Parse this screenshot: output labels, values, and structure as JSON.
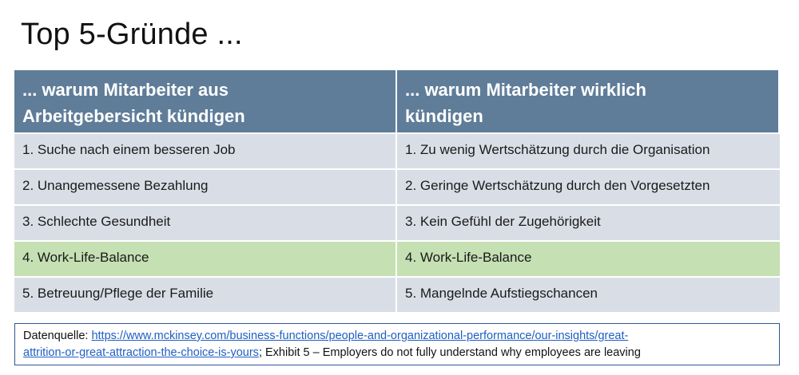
{
  "title": "Top 5-Gründe ...",
  "table": {
    "headers": [
      [
        "... warum Mitarbeiter aus",
        "Arbeitgebersicht kündigen"
      ],
      [
        "... warum Mitarbeiter wirklich",
        "kündigen"
      ]
    ],
    "rows": [
      {
        "left": "1. Suche nach einem besseren Job",
        "right": "1. Zu wenig Wertschätzung durch die Organisation",
        "highlight": false
      },
      {
        "left": "2. Unangemessene Bezahlung",
        "right": "2. Geringe Wertschätzung durch den Vorgesetzten",
        "highlight": false
      },
      {
        "left": "3. Schlechte Gesundheit",
        "right": "3. Kein Gefühl der Zugehörigkeit",
        "highlight": false
      },
      {
        "left": "4. Work-Life-Balance",
        "right": "4. Work-Life-Balance",
        "highlight": true
      },
      {
        "left": "5. Betreuung/Pflege der Familie",
        "right": "5. Mangelnde Aufstiegschancen",
        "highlight": false
      }
    ],
    "highlight_color": "#c5e0b3",
    "header_color": "#5f7d99"
  },
  "source": {
    "label": "Datenquelle: ",
    "link_line1": "https://www.mckinsey.com/business-functions/people-and-organizational-performance/our-insights/great-",
    "link_line2": "attrition-or-great-attraction-the-choice-is-yours",
    "suffix": "; Exhibit 5 – Employers do not fully understand why employees are leaving"
  }
}
